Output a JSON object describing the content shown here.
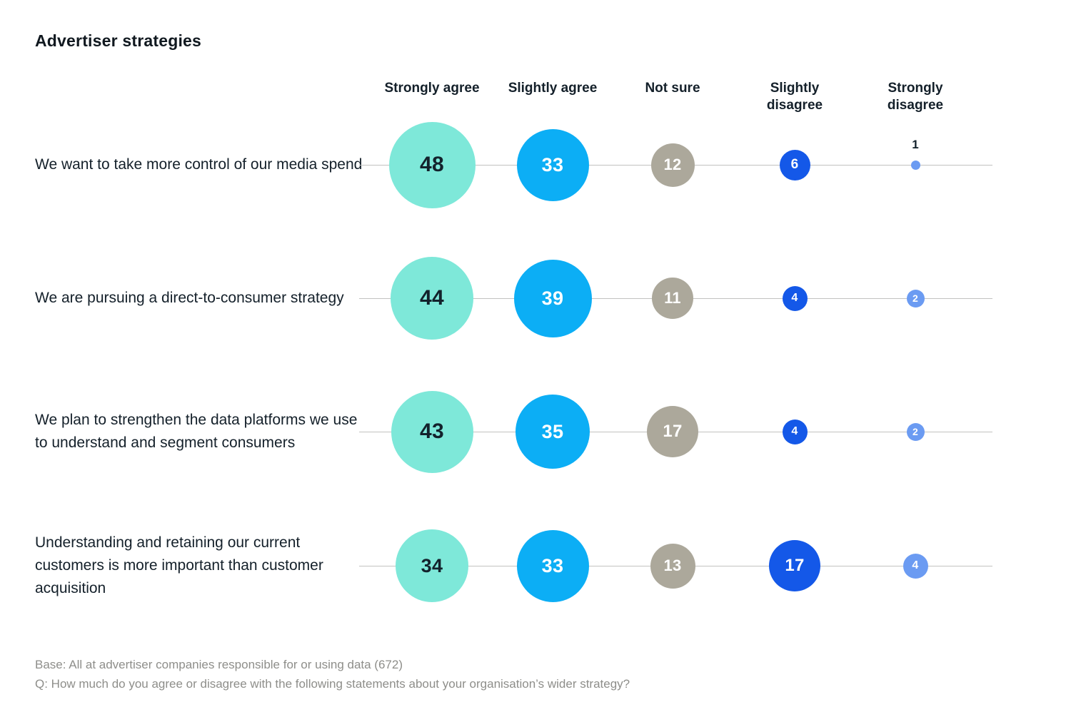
{
  "title": "Advertiser strategies",
  "footer": {
    "base": "Base: All at advertiser companies responsible for or using data (672)",
    "question": "Q: How much do you agree or disagree with the following statements about your organisation’s wider strategy?"
  },
  "colors": {
    "strongly_agree": "#7ee8d9",
    "slightly_agree": "#0caef5",
    "not_sure": "#aca89b",
    "slightly_disagree": "#1458e8",
    "strongly_disagree": "#6b9bf2",
    "line": "#c2c2c0",
    "text_dark": "#13222c",
    "text_light": "#ffffff",
    "footer_text": "#8e8e8a"
  },
  "chart_data": {
    "type": "scatter",
    "subtype": "bubble-matrix",
    "title": "Advertiser strategies",
    "units": "percent of respondents",
    "size_encoding": "bubble diameter proportional to sqrt(value)",
    "legend_position": "none",
    "grid": false,
    "categories": [
      "Strongly agree",
      "Slightly agree",
      "Not sure",
      "Slightly disagree",
      "Strongly disagree"
    ],
    "bubble_colors": [
      "#7ee8d9",
      "#0caef5",
      "#aca89b",
      "#1458e8",
      "#6b9bf2"
    ],
    "bubble_text_colors": [
      "#13222c",
      "#ffffff",
      "#ffffff",
      "#ffffff",
      "#ffffff"
    ],
    "series": [
      {
        "name": "We want to take more control of our media spend",
        "values": [
          48,
          33,
          12,
          6,
          1
        ]
      },
      {
        "name": "We are pursuing a direct-to-consumer strategy",
        "values": [
          44,
          39,
          11,
          4,
          2
        ]
      },
      {
        "name": "We plan to strengthen the data platforms we use to understand and segment consumers",
        "values": [
          43,
          35,
          17,
          4,
          2
        ]
      },
      {
        "name": "Understanding and retaining our current customers is more important than customer acquisition",
        "values": [
          34,
          33,
          13,
          17,
          4
        ]
      }
    ]
  }
}
